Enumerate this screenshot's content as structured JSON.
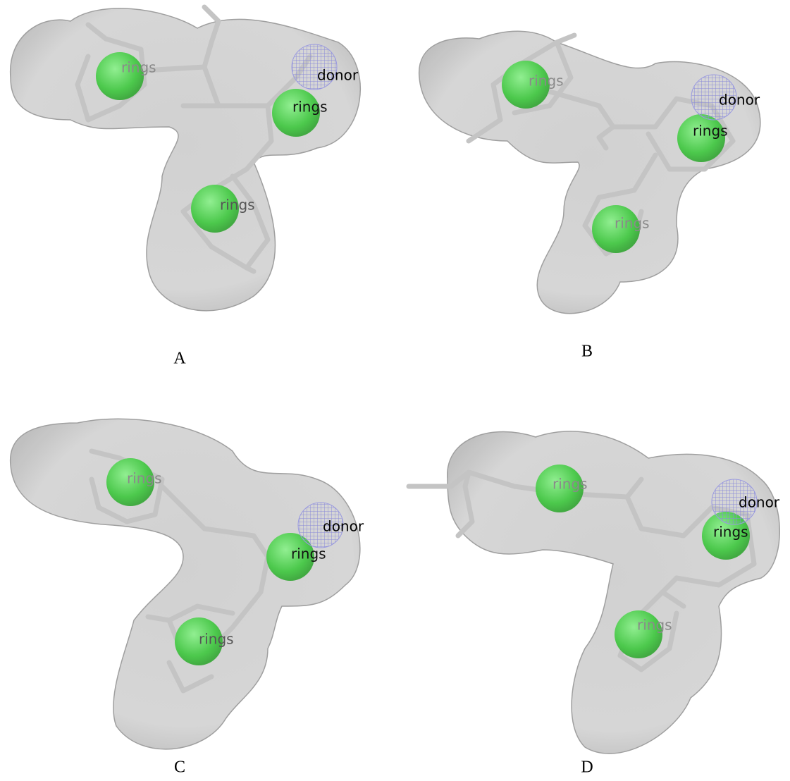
{
  "panels": [
    {
      "label": "A",
      "features": [
        "rings",
        "donor",
        "rings",
        "rings"
      ]
    },
    {
      "label": "B",
      "features": [
        "rings",
        "donor",
        "rings",
        "rings"
      ]
    },
    {
      "label": "C",
      "features": [
        "rings",
        "donor",
        "rings",
        "rings"
      ]
    },
    {
      "label": "D",
      "features": [
        "rings",
        "donor",
        "rings",
        "rings"
      ]
    }
  ]
}
